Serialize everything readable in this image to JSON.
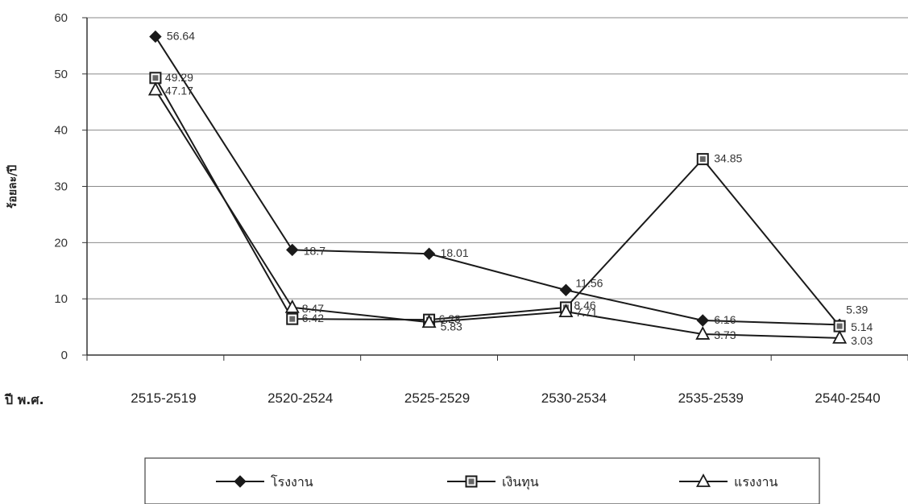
{
  "chart_data": {
    "type": "line",
    "categories": [
      "2515-2519",
      "2520-2524",
      "2525-2529",
      "2530-2534",
      "2535-2539",
      "2540-2540"
    ],
    "series": [
      {
        "name": "โรงงาน",
        "marker": "diamond",
        "values": [
          56.64,
          18.7,
          18.01,
          11.56,
          6.16,
          5.39
        ]
      },
      {
        "name": "เงินทุน",
        "marker": "square",
        "values": [
          49.29,
          6.42,
          6.28,
          8.46,
          34.85,
          5.14
        ]
      },
      {
        "name": "แรงงาน",
        "marker": "triangle",
        "values": [
          47.17,
          8.47,
          5.83,
          7.71,
          3.73,
          3.03
        ]
      }
    ],
    "data_labels": [
      [
        "56.64",
        "18.7",
        "18.01",
        "11.56",
        "6.16",
        "5.39"
      ],
      [
        "49.29",
        "6.42",
        "6.28",
        "8.46",
        "34.85",
        "5.14"
      ],
      [
        "47.17",
        "8.47",
        "5.83",
        "7.71",
        "3.73",
        "3.03"
      ]
    ],
    "ylabel": "ร้อยละ/ปี",
    "xlabel": "ปี พ.ศ.",
    "ylim": [
      0,
      60
    ],
    "yticks": [
      "0",
      "10",
      "20",
      "30",
      "40",
      "50",
      "60"
    ],
    "grid": true,
    "legend_position": "bottom",
    "line_color": "#1a1a1a"
  }
}
